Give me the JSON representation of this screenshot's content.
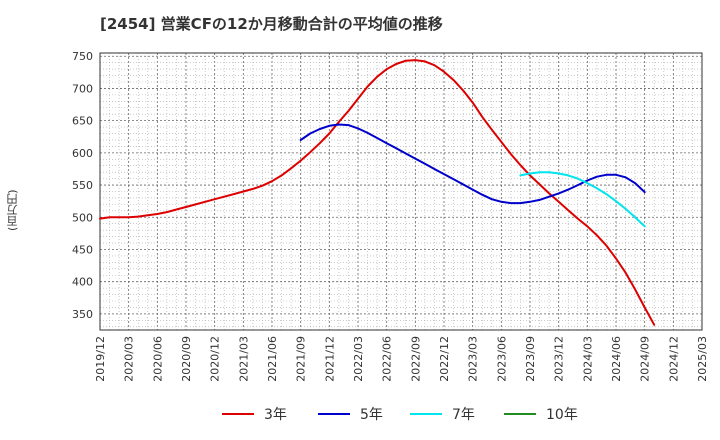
{
  "chart_data": {
    "type": "line",
    "title": "[2454]  営業CFの12か月移動合計の平均値の推移",
    "ylabel": "(百万円)",
    "xlabel": "",
    "ylim": [
      325,
      755
    ],
    "yticks": [
      350,
      400,
      450,
      500,
      550,
      600,
      650,
      700,
      750
    ],
    "x_tick_labels": [
      "2019/12",
      "2020/03",
      "2020/06",
      "2020/09",
      "2020/12",
      "2021/03",
      "2021/06",
      "2021/09",
      "2021/12",
      "2022/03",
      "2022/06",
      "2022/09",
      "2022/12",
      "2023/03",
      "2023/06",
      "2023/09",
      "2023/12",
      "2024/03",
      "2024/06",
      "2024/09",
      "2024/12",
      "2025/03"
    ],
    "grid": true,
    "legend_position": "bottom",
    "series": [
      {
        "name": "3年",
        "color": "#dd0000",
        "points": [
          [
            "2019/12",
            498
          ],
          [
            "2020/01",
            500
          ],
          [
            "2020/02",
            500
          ],
          [
            "2020/03",
            500
          ],
          [
            "2020/04",
            501
          ],
          [
            "2020/05",
            503
          ],
          [
            "2020/06",
            505
          ],
          [
            "2020/07",
            508
          ],
          [
            "2020/08",
            512
          ],
          [
            "2020/09",
            516
          ],
          [
            "2020/10",
            520
          ],
          [
            "2020/11",
            524
          ],
          [
            "2020/12",
            528
          ],
          [
            "2021/01",
            532
          ],
          [
            "2021/02",
            536
          ],
          [
            "2021/03",
            540
          ],
          [
            "2021/04",
            544
          ],
          [
            "2021/05",
            549
          ],
          [
            "2021/06",
            556
          ],
          [
            "2021/07",
            565
          ],
          [
            "2021/08",
            576
          ],
          [
            "2021/09",
            588
          ],
          [
            "2021/10",
            601
          ],
          [
            "2021/11",
            615
          ],
          [
            "2021/12",
            630
          ],
          [
            "2022/01",
            648
          ],
          [
            "2022/02",
            665
          ],
          [
            "2022/03",
            684
          ],
          [
            "2022/04",
            703
          ],
          [
            "2022/05",
            718
          ],
          [
            "2022/06",
            730
          ],
          [
            "2022/07",
            738
          ],
          [
            "2022/08",
            743
          ],
          [
            "2022/09",
            744
          ],
          [
            "2022/10",
            742
          ],
          [
            "2022/11",
            736
          ],
          [
            "2022/12",
            726
          ],
          [
            "2023/01",
            713
          ],
          [
            "2023/02",
            697
          ],
          [
            "2023/03",
            678
          ],
          [
            "2023/04",
            656
          ],
          [
            "2023/05",
            636
          ],
          [
            "2023/06",
            617
          ],
          [
            "2023/07",
            598
          ],
          [
            "2023/08",
            581
          ],
          [
            "2023/09",
            565
          ],
          [
            "2023/10",
            551
          ],
          [
            "2023/11",
            537
          ],
          [
            "2023/12",
            524
          ],
          [
            "2024/01",
            511
          ],
          [
            "2024/02",
            498
          ],
          [
            "2024/03",
            486
          ],
          [
            "2024/04",
            472
          ],
          [
            "2024/05",
            456
          ],
          [
            "2024/06",
            436
          ],
          [
            "2024/07",
            414
          ],
          [
            "2024/08",
            388
          ],
          [
            "2024/09",
            360
          ],
          [
            "2024/10",
            333
          ]
        ]
      },
      {
        "name": "5年",
        "color": "#0000cc",
        "points": [
          [
            "2021/09",
            620
          ],
          [
            "2021/10",
            630
          ],
          [
            "2021/11",
            637
          ],
          [
            "2021/12",
            642
          ],
          [
            "2022/01",
            644
          ],
          [
            "2022/02",
            643
          ],
          [
            "2022/03",
            638
          ],
          [
            "2022/04",
            631
          ],
          [
            "2022/05",
            623
          ],
          [
            "2022/06",
            615
          ],
          [
            "2022/07",
            607
          ],
          [
            "2022/08",
            599
          ],
          [
            "2022/09",
            591
          ],
          [
            "2022/10",
            583
          ],
          [
            "2022/11",
            575
          ],
          [
            "2022/12",
            567
          ],
          [
            "2023/01",
            559
          ],
          [
            "2023/02",
            551
          ],
          [
            "2023/03",
            543
          ],
          [
            "2023/04",
            535
          ],
          [
            "2023/05",
            528
          ],
          [
            "2023/06",
            524
          ],
          [
            "2023/07",
            522
          ],
          [
            "2023/08",
            522
          ],
          [
            "2023/09",
            524
          ],
          [
            "2023/10",
            527
          ],
          [
            "2023/11",
            532
          ],
          [
            "2023/12",
            537
          ],
          [
            "2024/01",
            543
          ],
          [
            "2024/02",
            550
          ],
          [
            "2024/03",
            557
          ],
          [
            "2024/04",
            563
          ],
          [
            "2024/05",
            566
          ],
          [
            "2024/06",
            566
          ],
          [
            "2024/07",
            562
          ],
          [
            "2024/08",
            553
          ],
          [
            "2024/09",
            539
          ]
        ]
      },
      {
        "name": "7年",
        "color": "#00e5ee",
        "points": [
          [
            "2023/08",
            565
          ],
          [
            "2023/09",
            568
          ],
          [
            "2023/10",
            570
          ],
          [
            "2023/11",
            570
          ],
          [
            "2023/12",
            568
          ],
          [
            "2024/01",
            565
          ],
          [
            "2024/02",
            560
          ],
          [
            "2024/03",
            553
          ],
          [
            "2024/04",
            545
          ],
          [
            "2024/05",
            536
          ],
          [
            "2024/06",
            525
          ],
          [
            "2024/07",
            513
          ],
          [
            "2024/08",
            500
          ],
          [
            "2024/09",
            486
          ]
        ]
      },
      {
        "name": "10年",
        "color": "#228b22",
        "points": []
      }
    ]
  }
}
